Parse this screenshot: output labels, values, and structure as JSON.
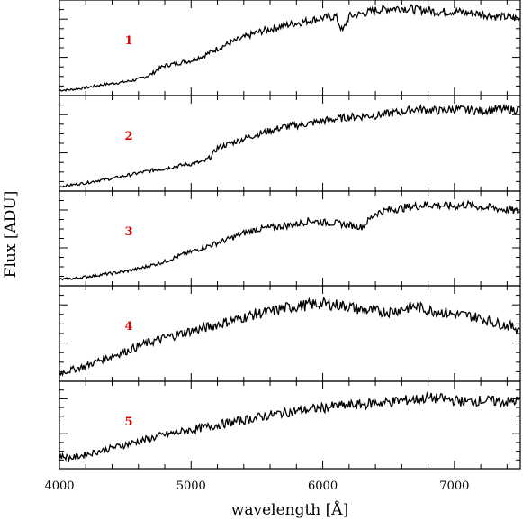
{
  "chart_data": {
    "type": "line",
    "xlabel": "wavelength [Å]",
    "ylabel": "Flux [ADU]",
    "xlim": [
      4000,
      7500
    ],
    "xticks": [
      "4000",
      "5000",
      "6000",
      "7000"
    ],
    "label_color": "#e00000",
    "panels": [
      {
        "label": "1",
        "ylim": [
          0,
          1.06
        ],
        "x": [
          4000,
          4100,
          4200,
          4300,
          4400,
          4500,
          4600,
          4650,
          4700,
          4750,
          4800,
          4900,
          5000,
          5100,
          5200,
          5300,
          5400,
          5500,
          5600,
          5700,
          5800,
          5900,
          6000,
          6100,
          6150,
          6200,
          6300,
          6400,
          6500,
          6600,
          6700,
          6800,
          6900,
          7000,
          7100,
          7200,
          7300,
          7400,
          7500
        ],
        "y": [
          0.03,
          0.04,
          0.06,
          0.09,
          0.11,
          0.13,
          0.16,
          0.19,
          0.22,
          0.28,
          0.32,
          0.35,
          0.38,
          0.44,
          0.52,
          0.59,
          0.65,
          0.71,
          0.75,
          0.79,
          0.82,
          0.85,
          0.88,
          0.9,
          0.72,
          0.9,
          0.93,
          0.97,
          0.99,
          1.0,
          0.98,
          0.97,
          0.95,
          0.96,
          0.94,
          0.93,
          0.9,
          0.89,
          0.87
        ]
      },
      {
        "label": "2",
        "ylim": [
          0,
          1.0
        ],
        "x": [
          4000,
          4100,
          4200,
          4300,
          4400,
          4500,
          4600,
          4700,
          4800,
          4900,
          5000,
          5100,
          5150,
          5200,
          5300,
          5400,
          5500,
          5600,
          5700,
          5800,
          5900,
          6000,
          6100,
          6200,
          6300,
          6400,
          6500,
          6600,
          6700,
          6800,
          6900,
          7000,
          7100,
          7200,
          7300,
          7400,
          7500
        ],
        "y": [
          0.02,
          0.04,
          0.06,
          0.09,
          0.11,
          0.14,
          0.17,
          0.2,
          0.22,
          0.25,
          0.27,
          0.3,
          0.35,
          0.45,
          0.5,
          0.55,
          0.6,
          0.64,
          0.68,
          0.7,
          0.72,
          0.75,
          0.77,
          0.79,
          0.8,
          0.81,
          0.83,
          0.85,
          0.88,
          0.87,
          0.86,
          0.88,
          0.87,
          0.86,
          0.88,
          0.87,
          0.88
        ]
      },
      {
        "label": "3",
        "ylim": [
          0,
          1.0
        ],
        "x": [
          4000,
          4100,
          4200,
          4300,
          4400,
          4500,
          4600,
          4700,
          4800,
          4900,
          5000,
          5100,
          5200,
          5300,
          5400,
          5500,
          5600,
          5700,
          5800,
          5900,
          6000,
          6100,
          6200,
          6300,
          6400,
          6500,
          6600,
          6700,
          6800,
          6900,
          7000,
          7100,
          7200,
          7300,
          7400,
          7500
        ],
        "y": [
          0.04,
          0.05,
          0.07,
          0.09,
          0.11,
          0.13,
          0.16,
          0.2,
          0.24,
          0.3,
          0.35,
          0.4,
          0.45,
          0.5,
          0.56,
          0.6,
          0.62,
          0.64,
          0.66,
          0.7,
          0.68,
          0.67,
          0.65,
          0.63,
          0.78,
          0.82,
          0.84,
          0.86,
          0.88,
          0.87,
          0.86,
          0.88,
          0.85,
          0.84,
          0.82,
          0.8
        ]
      },
      {
        "label": "4",
        "ylim": [
          0,
          1.0
        ],
        "x": [
          4000,
          4100,
          4200,
          4300,
          4400,
          4500,
          4600,
          4700,
          4800,
          4900,
          5000,
          5100,
          5200,
          5300,
          5400,
          5500,
          5600,
          5700,
          5800,
          5900,
          6000,
          6100,
          6200,
          6300,
          6400,
          6500,
          6600,
          6700,
          6800,
          6900,
          7000,
          7100,
          7200,
          7300,
          7400,
          7500
        ],
        "y": [
          0.06,
          0.1,
          0.14,
          0.2,
          0.25,
          0.3,
          0.36,
          0.41,
          0.45,
          0.49,
          0.53,
          0.56,
          0.6,
          0.64,
          0.68,
          0.72,
          0.74,
          0.78,
          0.8,
          0.82,
          0.83,
          0.82,
          0.8,
          0.76,
          0.75,
          0.74,
          0.77,
          0.8,
          0.76,
          0.74,
          0.71,
          0.7,
          0.67,
          0.62,
          0.59,
          0.55
        ]
      },
      {
        "label": "5",
        "ylim": [
          0,
          1.0
        ],
        "x": [
          4000,
          4100,
          4200,
          4300,
          4400,
          4500,
          4600,
          4700,
          4800,
          4900,
          5000,
          5100,
          5200,
          5300,
          5400,
          5500,
          5600,
          5700,
          5800,
          5900,
          6000,
          6100,
          6200,
          6300,
          6400,
          6500,
          6600,
          6700,
          6800,
          6900,
          7000,
          7100,
          7200,
          7300,
          7400,
          7500
        ],
        "y": [
          0.12,
          0.1,
          0.14,
          0.18,
          0.22,
          0.26,
          0.3,
          0.34,
          0.38,
          0.41,
          0.44,
          0.47,
          0.5,
          0.53,
          0.56,
          0.59,
          0.62,
          0.65,
          0.67,
          0.69,
          0.71,
          0.73,
          0.74,
          0.75,
          0.77,
          0.78,
          0.8,
          0.81,
          0.83,
          0.82,
          0.8,
          0.78,
          0.8,
          0.79,
          0.78,
          0.8
        ]
      }
    ]
  }
}
